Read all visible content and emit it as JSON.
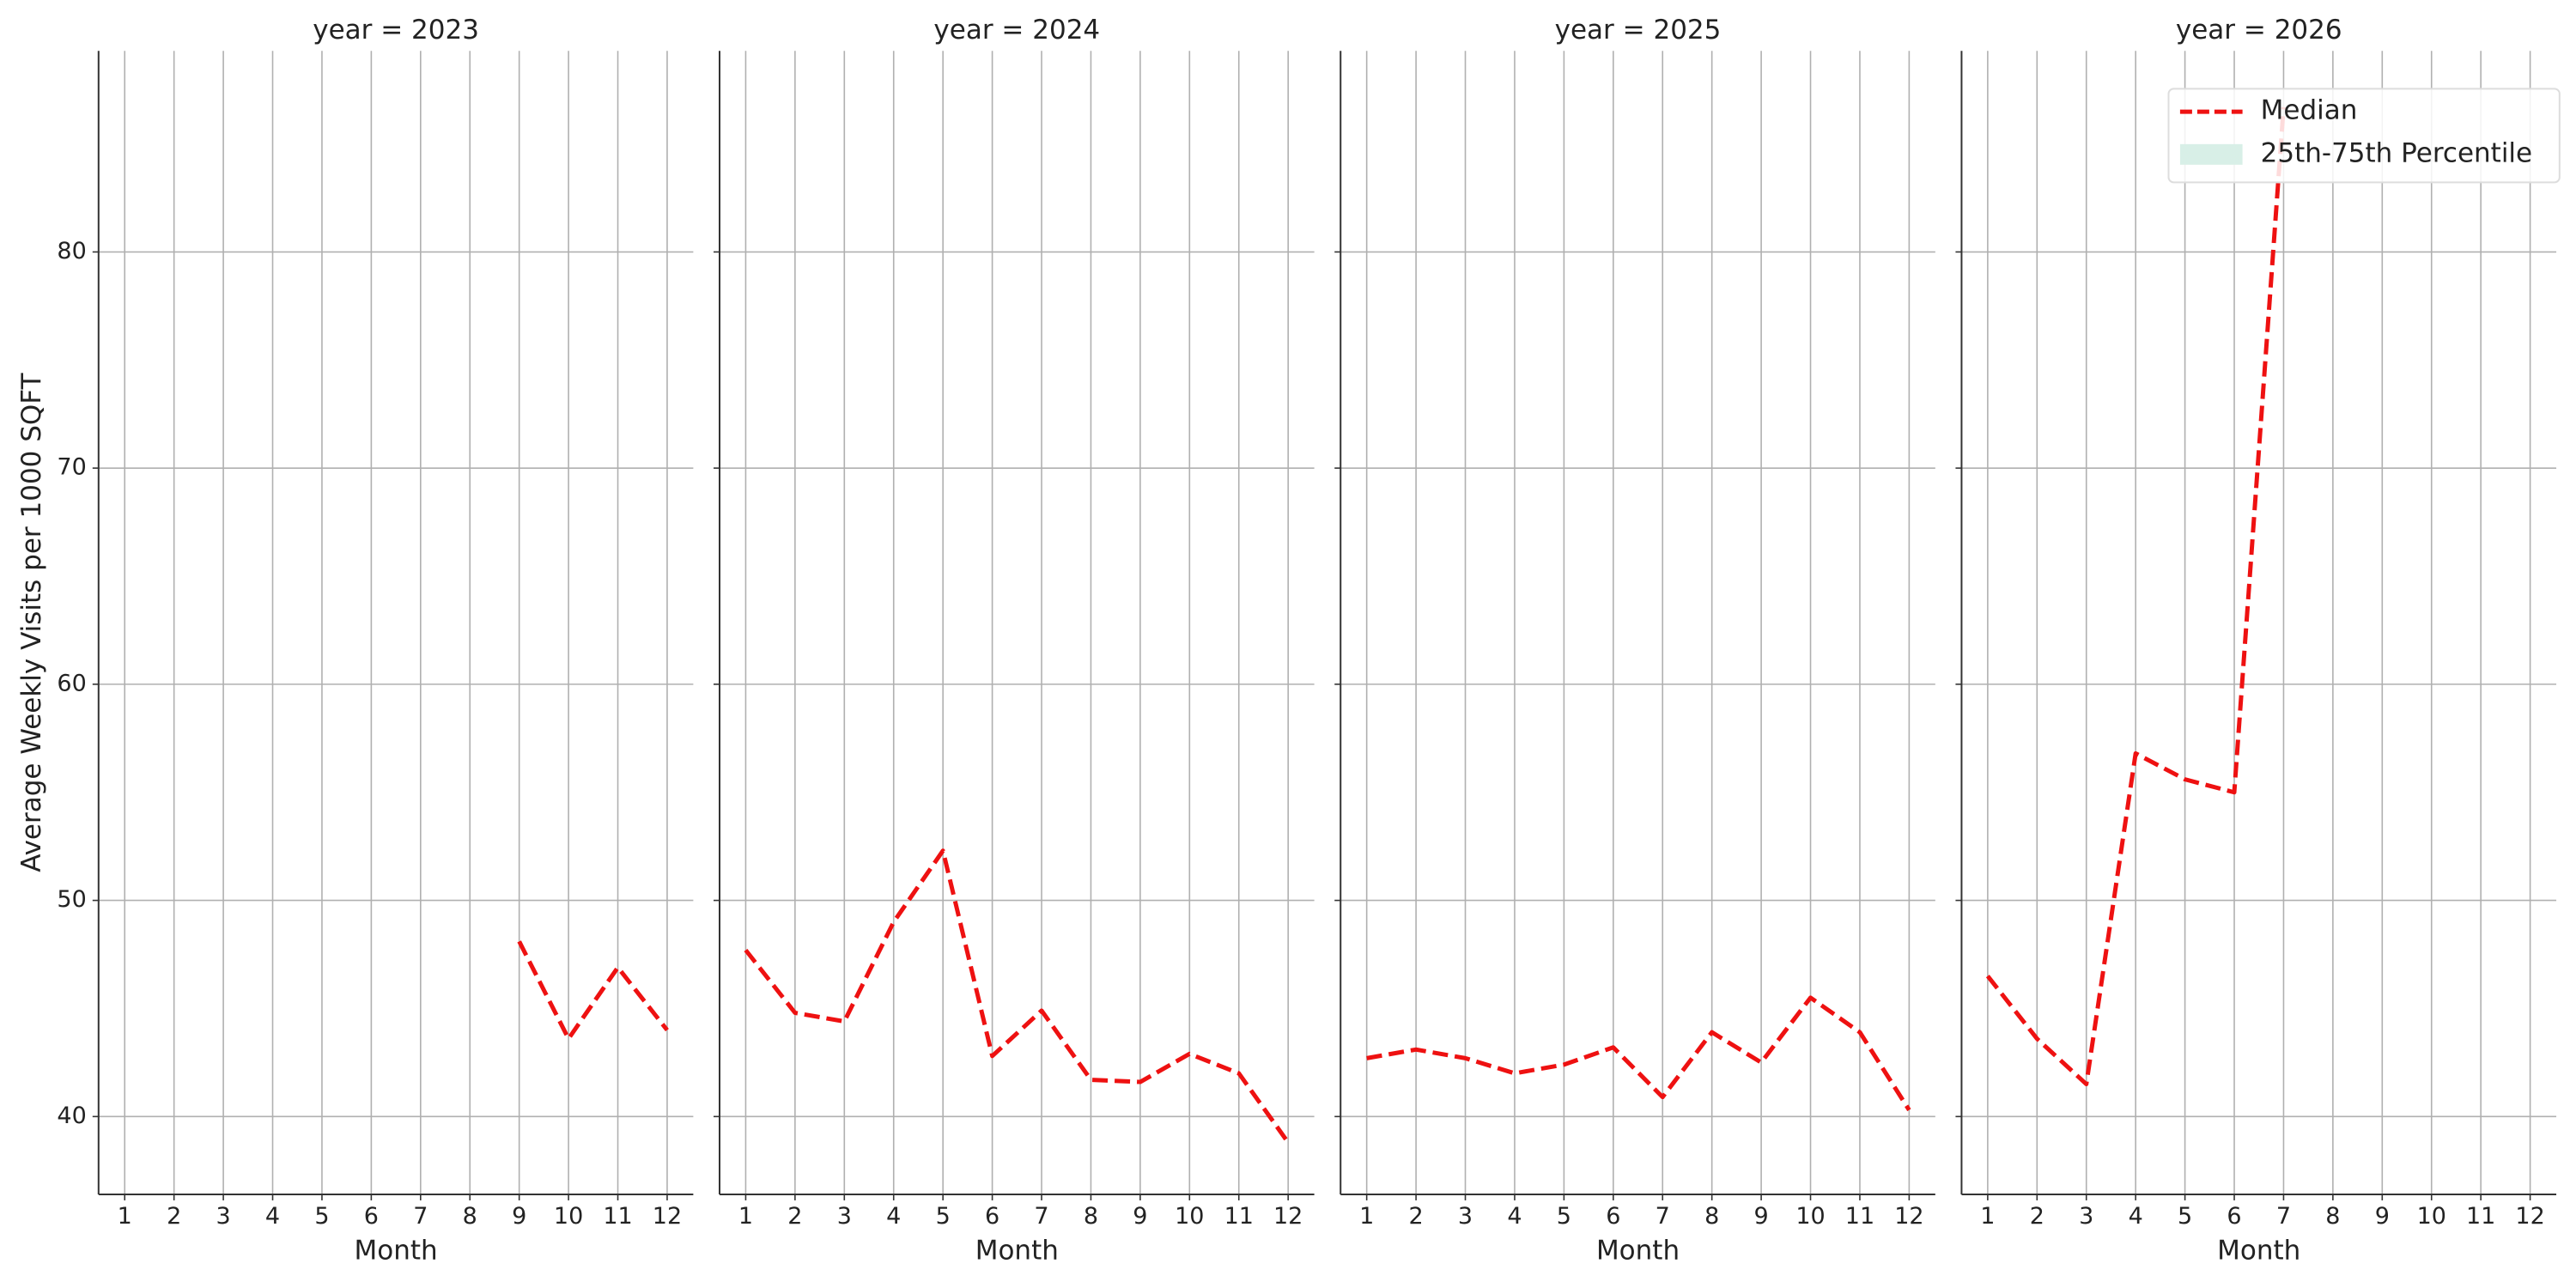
{
  "chart_data": [
    {
      "type": "line",
      "title": "year = 2023",
      "xlabel": "Month",
      "ylabel": "Average Weekly Visits per 1000 SQFT",
      "x": [
        1,
        2,
        3,
        4,
        5,
        6,
        7,
        8,
        9,
        10,
        11,
        12
      ],
      "series": [
        {
          "name": "Median",
          "color": "#ee1111",
          "values": [
            null,
            null,
            null,
            null,
            null,
            null,
            null,
            null,
            48.1,
            43.6,
            46.9,
            44.0
          ]
        }
      ],
      "xlim": [
        0.47,
        12.53
      ],
      "ylim": [
        36.4,
        89.3
      ],
      "xticks": [
        1,
        2,
        3,
        4,
        5,
        6,
        7,
        8,
        9,
        10,
        11,
        12
      ],
      "yticks": [
        40,
        50,
        60,
        70,
        80
      ],
      "grid": true
    },
    {
      "type": "line",
      "title": "year = 2024",
      "xlabel": "Month",
      "x": [
        1,
        2,
        3,
        4,
        5,
        6,
        7,
        8,
        9,
        10,
        11,
        12
      ],
      "series": [
        {
          "name": "Median",
          "color": "#ee1111",
          "values": [
            47.7,
            44.8,
            44.4,
            49.0,
            52.3,
            42.8,
            44.9,
            41.7,
            41.6,
            42.9,
            42.0,
            38.8
          ]
        }
      ],
      "xlim": [
        0.47,
        12.53
      ],
      "ylim": [
        36.4,
        89.3
      ],
      "xticks": [
        1,
        2,
        3,
        4,
        5,
        6,
        7,
        8,
        9,
        10,
        11,
        12
      ],
      "yticks": [
        40,
        50,
        60,
        70,
        80
      ],
      "grid": true
    },
    {
      "type": "line",
      "title": "year = 2025",
      "xlabel": "Month",
      "x": [
        1,
        2,
        3,
        4,
        5,
        6,
        7,
        8,
        9,
        10,
        11,
        12
      ],
      "series": [
        {
          "name": "Median",
          "color": "#ee1111",
          "values": [
            42.7,
            43.1,
            42.7,
            42.0,
            42.4,
            43.2,
            40.9,
            43.9,
            42.5,
            45.5,
            43.9,
            40.3
          ]
        }
      ],
      "xlim": [
        0.47,
        12.53
      ],
      "ylim": [
        36.4,
        89.3
      ],
      "xticks": [
        1,
        2,
        3,
        4,
        5,
        6,
        7,
        8,
        9,
        10,
        11,
        12
      ],
      "yticks": [
        40,
        50,
        60,
        70,
        80
      ],
      "grid": true
    },
    {
      "type": "line",
      "title": "year = 2026",
      "xlabel": "Month",
      "x": [
        1,
        2,
        3,
        4,
        5,
        6,
        7,
        8,
        9,
        10,
        11,
        12
      ],
      "series": [
        {
          "name": "Median",
          "color": "#ee1111",
          "values": [
            46.5,
            43.6,
            41.5,
            56.8,
            55.6,
            55.0,
            86.7,
            null,
            null,
            null,
            null,
            null
          ]
        }
      ],
      "xlim": [
        0.47,
        12.53
      ],
      "ylim": [
        36.4,
        89.3
      ],
      "xticks": [
        1,
        2,
        3,
        4,
        5,
        6,
        7,
        8,
        9,
        10,
        11,
        12
      ],
      "yticks": [
        40,
        50,
        60,
        70,
        80
      ],
      "grid": true,
      "legend": {
        "loc": "upper right",
        "entries": [
          {
            "name": "Median",
            "color": "#ee1111",
            "style": "dashed-line"
          },
          {
            "name": "25th-75th Percentile",
            "color": "#d8efe7",
            "style": "patch"
          }
        ]
      }
    }
  ]
}
